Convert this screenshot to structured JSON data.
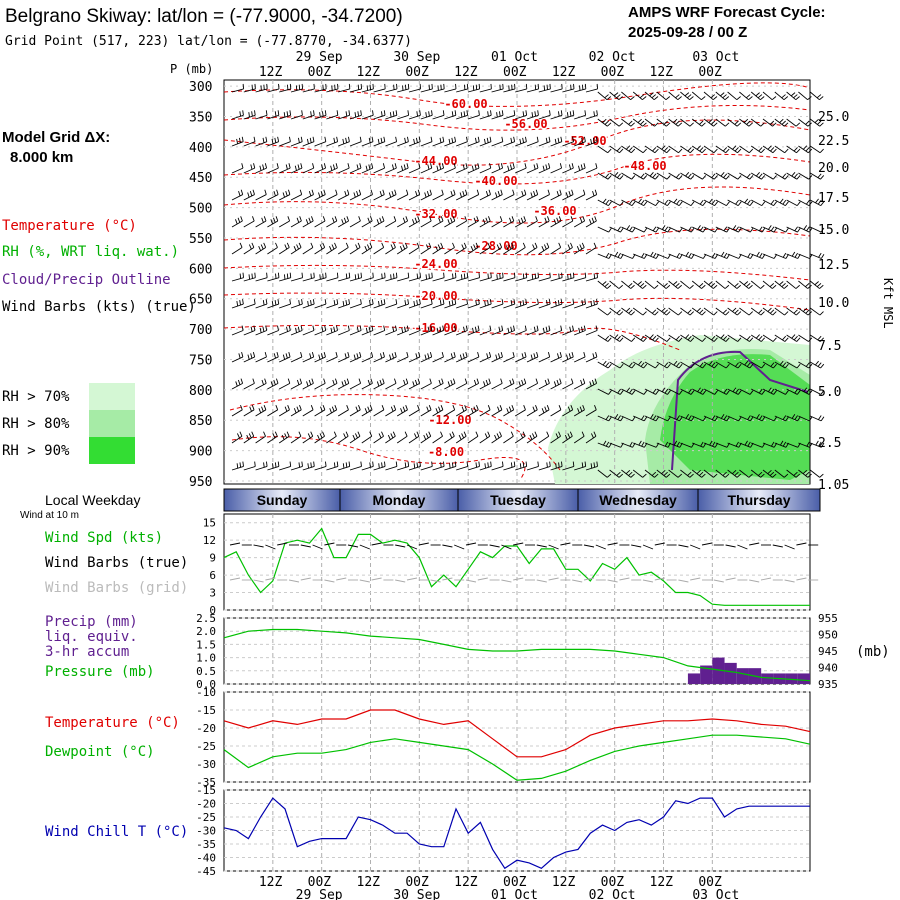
{
  "header": {
    "title": "Belgrano Skiway:  lat/lon = (-77.9000, -34.7200)",
    "grid_point": "Grid Point (517, 223) lat/lon = (-77.8770, -34.6377)",
    "cycle_line1": "AMPS WRF Forecast Cycle:",
    "cycle_line2": "2025-09-28 / 00  Z"
  },
  "legend": {
    "model_grid_label": "Model Grid ΔX:",
    "model_grid_value": "8.000 km",
    "temperature": "Temperature (°C)",
    "rh": "RH (%, WRT liq. wat.)",
    "cloud": "Cloud/Precip Outline",
    "wind_barbs": "Wind Barbs (kts) (true)",
    "rh70": "RH > 70%",
    "rh80": "RH > 80%",
    "rh90": "RH > 90%",
    "local_weekday": "Local Weekday",
    "wind_at_10m": "Wind at 10 m",
    "p_mb": "P (mb)",
    "kft_msl": "Kft MSL",
    "mb_unit": "(mb)"
  },
  "colors": {
    "temp": "#e00000",
    "dew": "#00c000",
    "wind_chill": "#0000b0",
    "precip": "#602090",
    "rh70": "#d4f7d4",
    "rh80": "#a6eba6",
    "rh90": "#33dd33",
    "grid": "#b0b0b0"
  },
  "time_axis": {
    "top_dates": [
      "29 Sep",
      "30 Sep",
      "01 Oct",
      "02 Oct",
      "03 Oct"
    ],
    "hours": [
      "12Z",
      "00Z",
      "12Z",
      "00Z",
      "12Z",
      "00Z",
      "12Z",
      "00Z",
      "12Z",
      "00Z"
    ],
    "bottom_dates": [
      "29 Sep",
      "30 Sep",
      "01 Oct",
      "02 Oct",
      "03 Oct"
    ],
    "weekdays": [
      "Sunday",
      "Monday",
      "Tuesday",
      "Wednesday",
      "Thursday"
    ]
  },
  "chart_data": [
    {
      "type": "contour",
      "name": "upper-air cross-section",
      "y_axis_label": "P (mb)",
      "pressure_ticks": [
        300,
        350,
        400,
        450,
        500,
        550,
        600,
        650,
        700,
        750,
        800,
        850,
        900,
        950
      ],
      "height_ticks": [
        "25.0",
        "22.5",
        "20.0",
        "17.5",
        "15.0",
        "12.5",
        "10.0",
        "7.5",
        "5.0",
        "2.5",
        "1.05"
      ],
      "height_axis_label": "Kft MSL",
      "temperature_contour_labels": [
        "-60.00",
        "-56.00",
        "-52.00",
        "-48.00",
        "-44.00",
        "-40.00",
        "-36.00",
        "-32.00",
        "-28.00",
        "-24.00",
        "-20.00",
        "-16.00",
        "-12.00",
        "-8.00"
      ],
      "rh_levels": [
        "RH > 70%",
        "RH > 80%",
        "RH > 90%"
      ]
    },
    {
      "type": "line",
      "name": "10 m wind speed",
      "series_label": "Wind Spd (kts)",
      "barb_labels": [
        "Wind Barbs (true)",
        "Wind Barbs (grid)"
      ],
      "y_ticks": [
        "0",
        "3",
        "6",
        "9",
        "12",
        "15"
      ],
      "ylim": [
        0,
        16.5
      ],
      "hours_from_start": [
        0,
        3,
        6,
        9,
        12,
        15,
        18,
        21,
        24,
        27,
        30,
        33,
        36,
        39,
        42,
        45,
        48,
        51,
        54,
        57,
        60,
        63,
        66,
        69,
        72,
        75,
        78,
        81,
        84,
        87,
        90,
        93,
        96,
        99,
        102,
        105,
        108,
        111,
        114,
        117,
        120,
        123,
        126,
        129,
        132,
        135,
        138,
        141,
        144
      ],
      "values": [
        9,
        10,
        6,
        3,
        5,
        11.5,
        12,
        11.5,
        14,
        9,
        9,
        13,
        13,
        11.5,
        12,
        11.5,
        9,
        4,
        6,
        4,
        7,
        10,
        9,
        11,
        11,
        8,
        10.5,
        10.5,
        7,
        7,
        5,
        8,
        7,
        9,
        6,
        6.5,
        5,
        3,
        3,
        2.5,
        1,
        0.8,
        0.8,
        0.8,
        0.8,
        0.8,
        0.8,
        0.8,
        0.8
      ]
    },
    {
      "type": "bar",
      "name": "3-hr precipitation and pressure",
      "precip_label": "Precip (mm)",
      "precip_sub1": "liq. equiv.",
      "precip_sub2": "3-hr accum",
      "pressure_label": "Pressure (mb)",
      "y_ticks_left": [
        "0.0",
        "0.5",
        "1.0",
        "1.5",
        "2.0",
        "2.5"
      ],
      "y_ticks_right": [
        "935",
        "940",
        "945",
        "950",
        "955"
      ],
      "precip_hours_start": [
        114,
        117,
        120,
        123,
        126,
        129,
        132,
        135,
        138,
        141
      ],
      "precip_values": [
        0.4,
        0.7,
        1.0,
        0.8,
        0.6,
        0.6,
        0.4,
        0.4,
        0.4,
        0.4
      ],
      "pressure_hours": [
        0,
        6,
        12,
        18,
        24,
        30,
        36,
        42,
        48,
        54,
        60,
        66,
        72,
        78,
        84,
        90,
        96,
        102,
        108,
        114,
        120,
        126,
        132,
        138,
        144
      ],
      "pressure_values": [
        949,
        951,
        951.5,
        951.5,
        951,
        950.5,
        949.5,
        949,
        948.5,
        947,
        945.5,
        945,
        945,
        945.5,
        945.5,
        945.5,
        945,
        944,
        943,
        940.5,
        939.5,
        938.5,
        937,
        936.5,
        936
      ]
    },
    {
      "type": "line",
      "name": "temperature and dewpoint",
      "series_labels": [
        "Temperature (°C)",
        "Dewpoint (°C)"
      ],
      "y_ticks": [
        "-35",
        "-30",
        "-25",
        "-20",
        "-15",
        "-10"
      ],
      "ylim": [
        -35,
        -10
      ],
      "hours": [
        0,
        6,
        12,
        18,
        24,
        30,
        36,
        42,
        48,
        54,
        60,
        66,
        72,
        78,
        84,
        90,
        96,
        102,
        108,
        114,
        120,
        126,
        132,
        138,
        144
      ],
      "temperature": [
        -18,
        -20,
        -18,
        -19,
        -17.5,
        -17.5,
        -15,
        -15,
        -17.5,
        -19,
        -18,
        -23,
        -28,
        -28,
        -26,
        -22,
        -20,
        -19,
        -18,
        -18,
        -17.5,
        -18,
        -19,
        -19.5,
        -21
      ],
      "dewpoint": [
        -26,
        -31,
        -28,
        -27,
        -27,
        -26,
        -24,
        -23,
        -24,
        -25,
        -26,
        -30,
        -34.5,
        -34,
        -32,
        -29,
        -26.5,
        -25,
        -24,
        -23,
        -22,
        -22,
        -22.5,
        -23,
        -24.5
      ]
    },
    {
      "type": "line",
      "name": "wind chill",
      "series_label": "Wind Chill T (°C)",
      "y_ticks": [
        "-45",
        "-40",
        "-35",
        "-30",
        "-25",
        "-20",
        "-15"
      ],
      "ylim": [
        -45,
        -15
      ],
      "hours": [
        0,
        3,
        6,
        9,
        12,
        15,
        18,
        21,
        24,
        27,
        30,
        33,
        36,
        39,
        42,
        45,
        48,
        51,
        54,
        57,
        60,
        63,
        66,
        69,
        72,
        75,
        78,
        81,
        84,
        87,
        90,
        93,
        96,
        99,
        102,
        105,
        108,
        111,
        114,
        117,
        120,
        123,
        126,
        129,
        132,
        135,
        138,
        141,
        144
      ],
      "values": [
        -29,
        -30,
        -33,
        -25,
        -18,
        -22,
        -36,
        -34,
        -33,
        -33,
        -33,
        -25,
        -26,
        -28,
        -31,
        -31,
        -35,
        -36,
        -36,
        -22,
        -31,
        -27,
        -37,
        -44,
        -41,
        -42,
        -44,
        -40,
        -38,
        -37,
        -31,
        -28,
        -30,
        -27,
        -26,
        -28,
        -25,
        -19,
        -20,
        -18,
        -18,
        -25,
        -22,
        -21,
        -21,
        -21,
        -21,
        -21,
        -21
      ]
    }
  ]
}
